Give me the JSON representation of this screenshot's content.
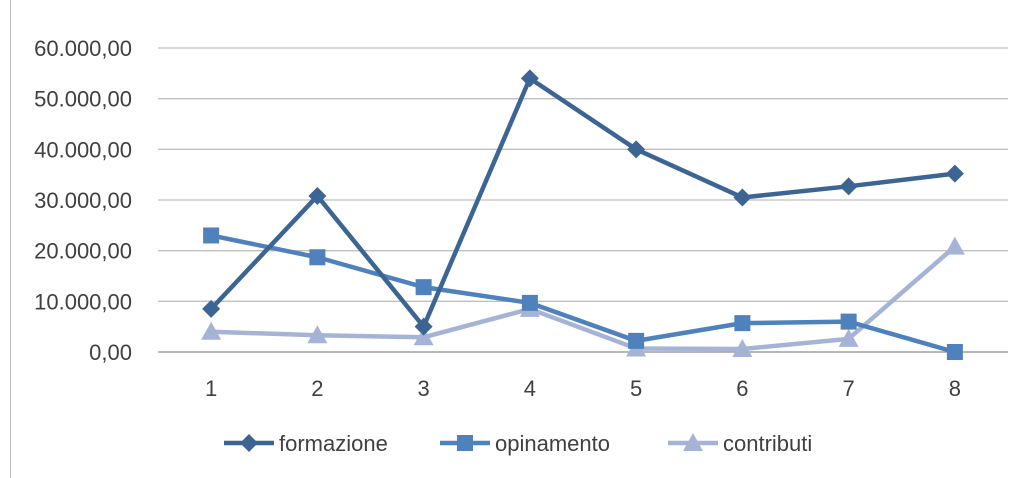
{
  "chart_data": {
    "type": "line",
    "categories": [
      "1",
      "2",
      "3",
      "4",
      "5",
      "6",
      "7",
      "8"
    ],
    "y_ticks": [
      "0,00",
      "10.000,00",
      "20.000,00",
      "30.000,00",
      "40.000,00",
      "50.000,00",
      "60.000,00"
    ],
    "ylim": [
      0,
      60000
    ],
    "grid": true,
    "legend_position": "bottom",
    "series": [
      {
        "name": "formazione",
        "marker": "diamond",
        "color": "#3d6593",
        "values": [
          8500,
          30800,
          5000,
          54000,
          40000,
          30500,
          32700,
          35200
        ]
      },
      {
        "name": "opinamento",
        "marker": "square",
        "color": "#4f81bd",
        "values": [
          23000,
          18700,
          12800,
          9700,
          2200,
          5700,
          6000,
          0
        ]
      },
      {
        "name": "contributi",
        "marker": "triangle",
        "color": "#a5b4d6",
        "values": [
          4000,
          3300,
          2900,
          8500,
          700,
          600,
          2600,
          20800
        ]
      }
    ]
  }
}
